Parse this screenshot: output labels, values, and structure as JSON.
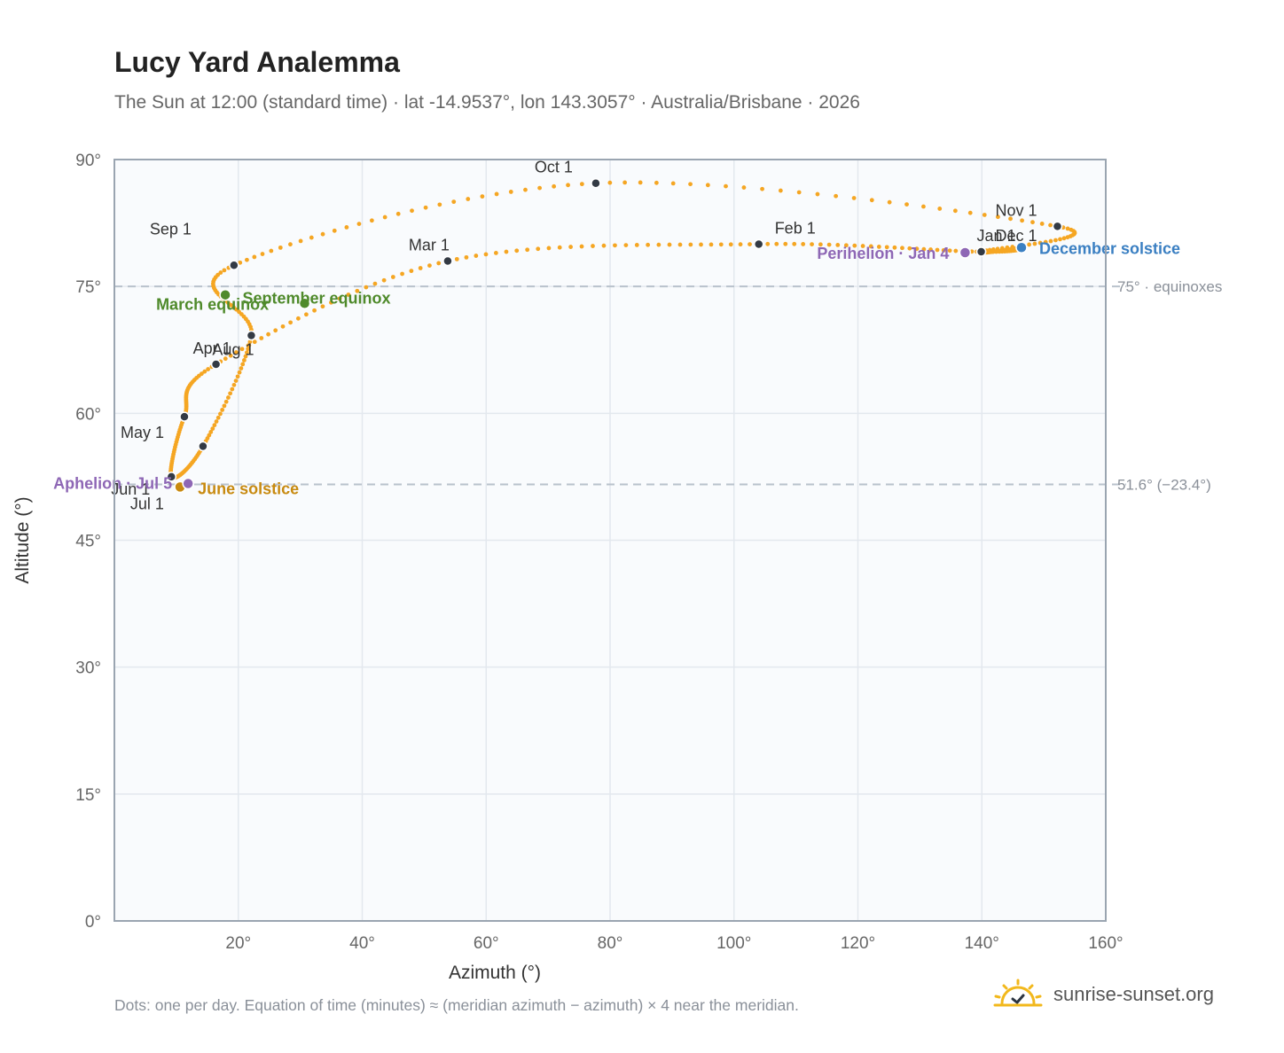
{
  "header": {
    "title": "Lucy Yard Analemma",
    "subtitle": "The Sun at 12:00 (standard time) · lat -14.9537°, lon 143.3057° · Australia/Brisbane · 2026"
  },
  "footer": {
    "note": "Dots: one per day. Equation of time (minutes) ≈ (meridian azimuth − azimuth) × 4 near the meridian.",
    "brand": "sunrise-sunset.org"
  },
  "colors": {
    "curve": "#f5a623",
    "month_dot": "#333a44",
    "equinox": "#4f8a2b",
    "june_solstice": "#c88a10",
    "december_solstice": "#3a7fc2",
    "apsis": "#8e67b5",
    "reference_line": "#b9c2cc",
    "plot_bg": "#f9fbfd",
    "grid": "#e3e8ee"
  },
  "icons": {
    "brand": "sun-check-icon"
  },
  "chart_data": {
    "type": "scatter",
    "xlabel": "Azimuth (°)",
    "ylabel": "Altitude (°)",
    "xlim": [
      0,
      160
    ],
    "ylim": [
      0,
      90
    ],
    "x_ticks": [
      20,
      40,
      60,
      80,
      100,
      120,
      140,
      160
    ],
    "x_tick_labels": [
      "20°",
      "40°",
      "60°",
      "80°",
      "100°",
      "120°",
      "140°",
      "160°"
    ],
    "y_ticks": [
      0,
      15,
      30,
      45,
      60,
      75,
      90
    ],
    "y_tick_labels": [
      "0°",
      "15°",
      "30°",
      "45°",
      "60°",
      "75°",
      "90°"
    ],
    "grid": true,
    "reference_lines": [
      {
        "altitude": 75,
        "label": "75° · equinoxes"
      },
      {
        "altitude": 51.6,
        "label": "51.6° (−23.4°)"
      }
    ],
    "months": [
      {
        "label": "Jan 1",
        "az": 139.9,
        "alt": 79.1
      },
      {
        "label": "Feb 1",
        "az": 104.0,
        "alt": 80.0
      },
      {
        "label": "Mar 1",
        "az": 53.8,
        "alt": 78.0
      },
      {
        "label": "Apr 1",
        "az": 16.4,
        "alt": 65.8
      },
      {
        "label": "May 1",
        "az": 11.3,
        "alt": 59.6
      },
      {
        "label": "Jun 1",
        "az": 9.2,
        "alt": 52.5
      },
      {
        "label": "Jul 1",
        "az": 14.3,
        "alt": 56.1
      },
      {
        "label": "Aug 1",
        "az": 22.1,
        "alt": 69.2
      },
      {
        "label": "Sep 1",
        "az": 19.3,
        "alt": 77.5
      },
      {
        "label": "Oct 1",
        "az": 77.7,
        "alt": 87.2
      },
      {
        "label": "Nov 1",
        "az": 152.2,
        "alt": 82.1
      },
      {
        "label": "Dec 1",
        "az": 139.9,
        "alt": 79.1
      }
    ],
    "events": [
      {
        "label": "March equinox",
        "az": 17.9,
        "alt": 74.0,
        "kind": "equinox"
      },
      {
        "label": "September equinox",
        "az": 30.7,
        "alt": 73.0,
        "kind": "equinox"
      },
      {
        "label": "June solstice",
        "az": 10.6,
        "alt": 51.3,
        "kind": "june_solstice"
      },
      {
        "label": "December solstice",
        "az": 146.4,
        "alt": 79.6,
        "kind": "december_solstice"
      },
      {
        "label": "Aphelion · Jul 5",
        "az": 11.9,
        "alt": 51.7,
        "kind": "apsis"
      },
      {
        "label": "Perihelion · Jan 4",
        "az": 137.3,
        "alt": 79.0,
        "kind": "apsis"
      }
    ]
  }
}
